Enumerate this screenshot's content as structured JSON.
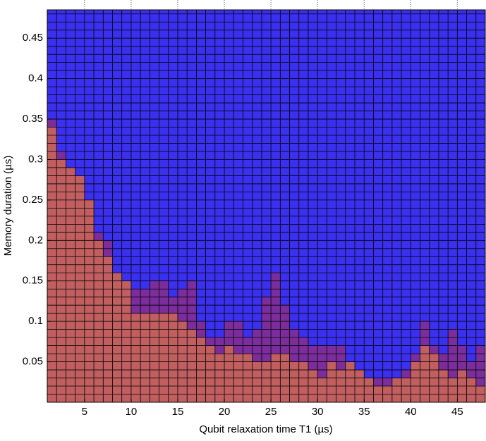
{
  "chart_data": {
    "type": "boundary-heatmap",
    "x_label": "Qubit relaxation time T1 (µs)",
    "y_label": "Memory duration (µs)",
    "x": [
      1,
      2,
      3,
      4,
      5,
      6,
      7,
      8,
      9,
      10,
      11,
      12,
      13,
      14,
      15,
      16,
      17,
      18,
      19,
      20,
      21,
      22,
      23,
      24,
      25,
      26,
      27,
      28,
      29,
      30,
      31,
      32,
      33,
      34,
      35,
      36,
      37,
      38,
      39,
      40,
      41,
      42,
      43,
      44,
      45,
      46,
      47
    ],
    "series": [
      {
        "color": "#c15f60",
        "values": [
          0.34,
          0.3,
          0.29,
          0.28,
          0.25,
          0.2,
          0.18,
          0.16,
          0.15,
          0.11,
          0.11,
          0.11,
          0.11,
          0.11,
          0.1,
          0.09,
          0.08,
          0.07,
          0.06,
          0.07,
          0.06,
          0.06,
          0.05,
          0.05,
          0.06,
          0.06,
          0.05,
          0.05,
          0.04,
          0.03,
          0.05,
          0.04,
          0.05,
          0.04,
          0.03,
          0.02,
          0.02,
          0.03,
          0.03,
          0.05,
          0.07,
          0.06,
          0.04,
          0.03,
          0.04,
          0.03,
          0.02
        ]
      },
      {
        "color": "#7b2d9c",
        "values": [
          0.35,
          0.31,
          0.29,
          0.28,
          0.25,
          0.21,
          0.2,
          0.16,
          0.15,
          0.14,
          0.14,
          0.15,
          0.15,
          0.13,
          0.14,
          0.15,
          0.1,
          0.08,
          0.08,
          0.1,
          0.1,
          0.08,
          0.09,
          0.13,
          0.16,
          0.12,
          0.09,
          0.08,
          0.07,
          0.07,
          0.07,
          0.07,
          0.05,
          0.04,
          0.03,
          0.03,
          0.03,
          0.03,
          0.04,
          0.06,
          0.1,
          0.07,
          0.06,
          0.09,
          0.07,
          0.05,
          0.07
        ]
      }
    ],
    "background_color": "#3b30ee",
    "cell_height": 0.01,
    "xlim": [
      1,
      48
    ],
    "ylim": [
      0,
      0.485
    ],
    "xticks": [
      5,
      10,
      15,
      20,
      25,
      30,
      35,
      40,
      45
    ],
    "yticks": [
      0.05,
      0.1,
      0.15,
      0.2,
      0.25,
      0.3,
      0.35,
      0.4,
      0.45
    ]
  }
}
